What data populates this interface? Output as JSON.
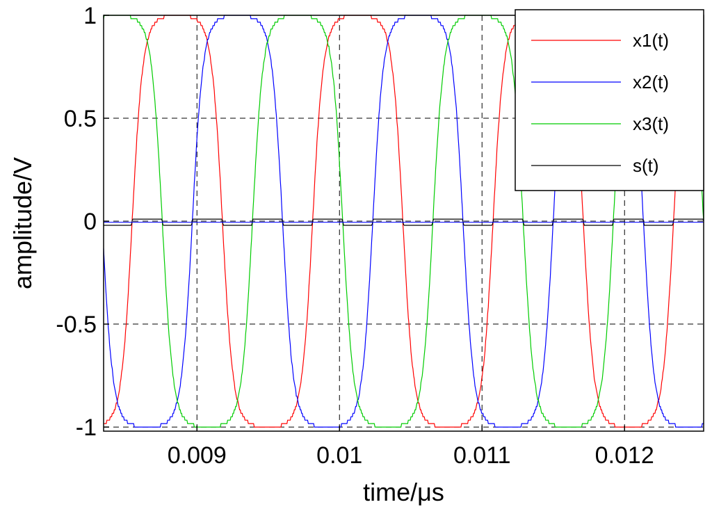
{
  "chart_data": {
    "type": "line",
    "xlabel": "time/μs",
    "ylabel": "amplitude/V",
    "xlim": [
      0.008345,
      0.012555
    ],
    "ylim": [
      -1.02,
      1.0
    ],
    "x_ticks": [
      0.009,
      0.01,
      0.011,
      0.012
    ],
    "x_tick_labels": [
      "0.009",
      "0.01",
      "0.011",
      "0.012"
    ],
    "y_ticks": [
      -1,
      -0.5,
      0,
      0.5,
      1
    ],
    "y_tick_labels": [
      "-1",
      "-0.5",
      "0",
      "0.5",
      "1"
    ],
    "grid": true,
    "legend_position": "top-right",
    "series": [
      {
        "name": "x1(t)",
        "color": "#ff0000",
        "period": 0.001266,
        "phase_deg": 0,
        "offset_deg": 90
      },
      {
        "name": "x2(t)",
        "color": "#0000ff",
        "period": 0.001266,
        "phase_deg": -120,
        "offset_deg": 90
      },
      {
        "name": "x3(t)",
        "color": "#00cc00",
        "period": 0.001266,
        "phase_deg": 120,
        "offset_deg": 90
      },
      {
        "name": "s(t)",
        "color": "#000000",
        "amplitude": 0.02
      }
    ]
  }
}
